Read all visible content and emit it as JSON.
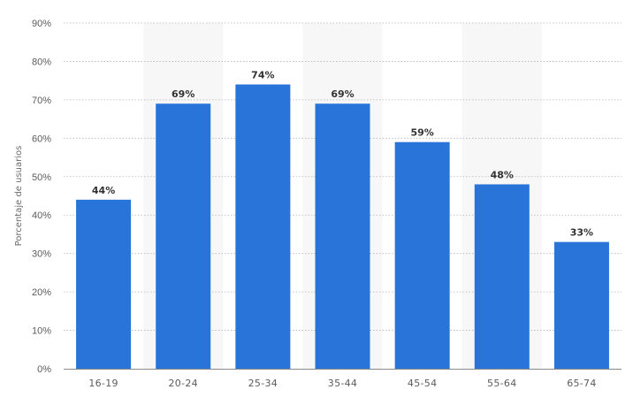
{
  "chart_data": {
    "type": "bar",
    "categories": [
      "16-19",
      "20-24",
      "25-34",
      "35-44",
      "45-54",
      "55-64",
      "65-74"
    ],
    "values": [
      44,
      69,
      74,
      69,
      59,
      48,
      33
    ],
    "value_labels": [
      "44%",
      "69%",
      "74%",
      "69%",
      "59%",
      "48%",
      "33%"
    ],
    "ylabel": "Porcentaje de usuarios",
    "xlabel": "",
    "ylim": [
      0,
      90
    ],
    "yticks": [
      0,
      10,
      20,
      30,
      40,
      50,
      60,
      70,
      80,
      90
    ],
    "ytick_labels": [
      "0%",
      "10%",
      "20%",
      "30%",
      "40%",
      "50%",
      "60%",
      "70%",
      "80%",
      "90%"
    ],
    "grid": true,
    "bar_color": "#2874d9",
    "band_color": "#f7f7f7"
  }
}
